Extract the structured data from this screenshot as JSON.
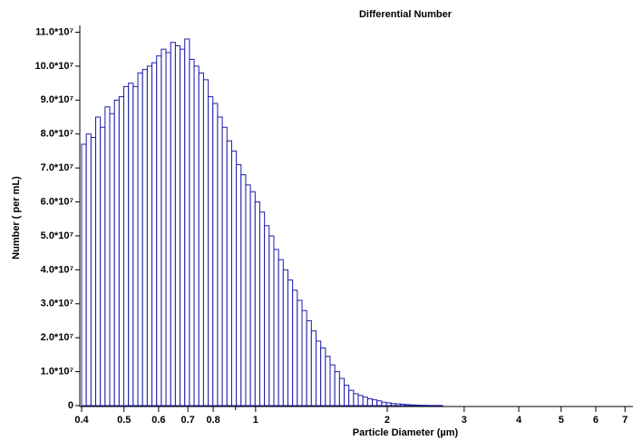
{
  "chart_data": {
    "type": "histogram",
    "title": "Differential Number",
    "x_label": "Particle Diameter (µm)",
    "y_label": "Number ( per mL)",
    "color": "#1c1ca8",
    "fill": "#ffffff",
    "xscale": "log",
    "bins": [
      0.4,
      0.41,
      0.4203,
      0.4308,
      0.4415,
      0.4526,
      0.4639,
      0.4755,
      0.4874,
      0.4995,
      0.512,
      0.5248,
      0.538,
      0.5514,
      0.5652,
      0.5793,
      0.5938,
      0.6087,
      0.6239,
      0.6395,
      0.6555,
      0.6719,
      0.6887,
      0.7059,
      0.7235,
      0.7416,
      0.7602,
      0.7792,
      0.7987,
      0.8186,
      0.8391,
      0.8601,
      0.8816,
      0.9036,
      0.9262,
      0.9494,
      0.9731,
      0.9975,
      1.0224,
      1.048,
      1.0742,
      1.101,
      1.1286,
      1.1568,
      1.1857,
      1.2153,
      1.2457,
      1.2769,
      1.3088,
      1.3415,
      1.3751,
      1.4094,
      1.4447,
      1.4808,
      1.5178,
      1.5558,
      1.5947,
      1.6345,
      1.6754,
      1.7173,
      1.7602,
      1.8042,
      1.8493,
      1.8955,
      1.9429,
      1.9915,
      2.0413,
      2.0923,
      2.1446,
      2.1983,
      2.2532,
      2.3096,
      2.3673,
      2.4265,
      2.4871,
      2.5493,
      2.613,
      2.6784
    ],
    "values": [
      77000000,
      80000000,
      79000000,
      85000000,
      82000000,
      88000000,
      86000000,
      90000000,
      91000000,
      94000000,
      95000000,
      94000000,
      98000000,
      99000000,
      100000000,
      101000000,
      103000000,
      105000000,
      104000000,
      107000000,
      106000000,
      105000000,
      108000000,
      102000000,
      100000000,
      98000000,
      96000000,
      91000000,
      89000000,
      85000000,
      82000000,
      78000000,
      75000000,
      71000000,
      68000000,
      65000000,
      63000000,
      60000000,
      57000000,
      53000000,
      50000000,
      46000000,
      43000000,
      40000000,
      37000000,
      34000000,
      31000000,
      28000000,
      25000000,
      22000000,
      19000000,
      17000000,
      14500000,
      12000000,
      10000000,
      8000000,
      6000000,
      4500000,
      3500000,
      3000000,
      2500000,
      2000000,
      1700000,
      1400000,
      1000000,
      800000,
      600000,
      500000,
      400000,
      300000,
      200000,
      150000,
      100000,
      80000,
      50000,
      40000,
      30000
    ],
    "xlim": [
      0.4,
      7.3
    ],
    "xticks": [
      0.4,
      0.5,
      0.6,
      0.7,
      0.8,
      1,
      2,
      3,
      4,
      5,
      6,
      7
    ],
    "xminor_ticks": [
      0.9
    ],
    "ylim": [
      0,
      112000000
    ],
    "yticks": [
      0,
      {
        "value": 10000000,
        "label": "1.0*10⁷"
      },
      {
        "value": 20000000,
        "label": "2.0*10⁷"
      },
      {
        "value": 30000000,
        "label": "3.0*10⁷"
      },
      {
        "value": 40000000,
        "label": "4.0*10⁷"
      },
      {
        "value": 50000000,
        "label": "5.0*10⁷"
      },
      {
        "value": 60000000,
        "label": "6.0*10⁷"
      },
      {
        "value": 70000000,
        "label": "7.0*10⁷"
      },
      {
        "value": 80000000,
        "label": "8.0*10⁷"
      },
      {
        "value": 90000000,
        "label": "9.0*10⁷"
      },
      {
        "value": 100000000,
        "label": "10.0*10⁷"
      },
      {
        "value": 110000000,
        "label": "11.0*10⁷"
      }
    ]
  }
}
